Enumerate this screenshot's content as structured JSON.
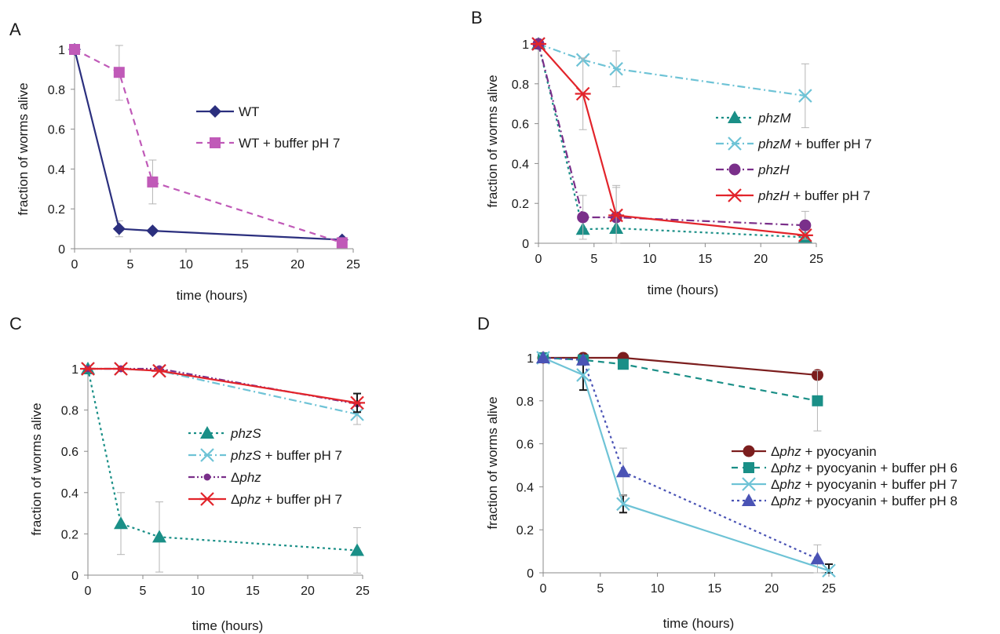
{
  "chart_data": [
    {
      "panel": "A",
      "type": "line",
      "xlabel": "time (hours)",
      "ylabel": "fraction of worms alive",
      "xlim": [
        0,
        25
      ],
      "ylim": [
        0,
        1
      ],
      "xticks": [
        "0",
        "5",
        "10",
        "15",
        "20",
        "25"
      ],
      "yticks": [
        "0",
        "0.2",
        "0.4",
        "0.6",
        "0.8",
        "1"
      ],
      "legend_position": "center-right",
      "series": [
        {
          "name": [
            "WT"
          ],
          "color": "#2b2f7e",
          "dash": "solid",
          "marker": "diamond",
          "x": [
            0,
            4,
            7,
            24
          ],
          "y": [
            1.0,
            0.1,
            0.09,
            0.045
          ],
          "err": [
            0,
            0.04,
            0,
            0
          ]
        },
        {
          "name": [
            "WT + buffer pH 7"
          ],
          "color": "#c05ab8",
          "dash": "dashed",
          "marker": "square",
          "x": [
            0,
            4,
            7,
            24
          ],
          "y": [
            1.0,
            0.885,
            0.335,
            0.03
          ],
          "err": [
            0,
            0.14,
            0.11,
            0
          ]
        }
      ]
    },
    {
      "panel": "B",
      "type": "line",
      "xlabel": "time (hours)",
      "ylabel": "fraction of worms alive",
      "xlim": [
        0,
        25
      ],
      "ylim": [
        0,
        1
      ],
      "xticks": [
        "0",
        "5",
        "10",
        "15",
        "20",
        "25"
      ],
      "yticks": [
        "0",
        "0.2",
        "0.4",
        "0.6",
        "0.8",
        "1"
      ],
      "legend_position": "center-right",
      "series": [
        {
          "name": [
            "phzM"
          ],
          "color": "#1a8f87",
          "dash": "dotted",
          "marker": "triangle",
          "x": [
            0,
            4,
            7,
            24
          ],
          "y": [
            1.0,
            0.07,
            0.075,
            0.03
          ],
          "err": [
            0,
            0,
            0,
            0
          ]
        },
        {
          "name": [
            "phzM",
            " + buffer pH 7"
          ],
          "color": "#6ec3d6",
          "dash": "dashdot",
          "marker": "x",
          "x": [
            0,
            4,
            7,
            24
          ],
          "y": [
            1.0,
            0.92,
            0.875,
            0.74
          ],
          "err": [
            0,
            0,
            0.09,
            0.16
          ]
        },
        {
          "name": [
            "phzH"
          ],
          "color": "#7a2f8a",
          "dash": "dashdot",
          "marker": "circle",
          "x": [
            0,
            4,
            7,
            24
          ],
          "y": [
            1.0,
            0.13,
            0.13,
            0.09
          ],
          "err": [
            0,
            0.11,
            0.15,
            0.07
          ]
        },
        {
          "name": [
            "phzH",
            " + buffer pH 7"
          ],
          "color": "#e2242b",
          "dash": "solid",
          "marker": "star",
          "x": [
            0,
            4,
            7,
            24
          ],
          "y": [
            1.0,
            0.75,
            0.14,
            0.04
          ],
          "err": [
            0,
            0.18,
            0.15,
            0
          ]
        }
      ]
    },
    {
      "panel": "C",
      "type": "line",
      "xlabel": "time (hours)",
      "ylabel": "fraction of worms alive",
      "xlim": [
        0,
        25
      ],
      "ylim": [
        0,
        1
      ],
      "xticks": [
        "0",
        "5",
        "10",
        "15",
        "20",
        "25"
      ],
      "yticks": [
        "0",
        "0.2",
        "0.4",
        "0.6",
        "0.8",
        "1"
      ],
      "legend_position": "center",
      "series": [
        {
          "name": [
            "phzS"
          ],
          "color": "#1a8f87",
          "dash": "dotted",
          "marker": "triangle",
          "x": [
            0,
            3,
            6.5,
            24.5
          ],
          "y": [
            1.0,
            0.25,
            0.185,
            0.12
          ],
          "err": [
            0,
            0.15,
            0.17,
            0.11
          ]
        },
        {
          "name": [
            "phzS",
            " + buffer pH 7"
          ],
          "color": "#6ec3d6",
          "dash": "dashdot",
          "marker": "x",
          "x": [
            0,
            3,
            6.5,
            24.5
          ],
          "y": [
            1.0,
            1.0,
            0.99,
            0.78
          ],
          "err": [
            0,
            0,
            0,
            0.05
          ]
        },
        {
          "name": [
            "Δ",
            "phz"
          ],
          "color": "#7a2f8a",
          "dash": "dashdotdot",
          "marker": "smallcircle",
          "x": [
            0,
            3,
            6.5,
            24.5
          ],
          "y": [
            1.0,
            1.0,
            1.0,
            0.83
          ],
          "err": [
            0,
            0,
            0,
            0
          ]
        },
        {
          "name": [
            "Δ",
            "phz",
            " + buffer pH 7"
          ],
          "color": "#e2242b",
          "dash": "solid",
          "marker": "star",
          "x": [
            0,
            3,
            6.5,
            24.5
          ],
          "y": [
            1.0,
            1.0,
            0.99,
            0.835
          ],
          "err": [
            0,
            0,
            0,
            0.045
          ]
        }
      ]
    },
    {
      "panel": "D",
      "type": "line",
      "xlabel": "time (hours)",
      "ylabel": "fraction of worms alive",
      "xlim": [
        0,
        25
      ],
      "ylim": [
        0,
        1
      ],
      "xticks": [
        "0",
        "5",
        "10",
        "15",
        "20",
        "25"
      ],
      "yticks": [
        "0",
        "0.2",
        "0.4",
        "0.6",
        "0.8",
        "1"
      ],
      "legend_position": "center-right",
      "series": [
        {
          "name": [
            "Δ",
            "phz",
            " + pyocyanin"
          ],
          "color": "#7c1e1e",
          "dash": "solid",
          "marker": "circle",
          "x": [
            0,
            3.5,
            7,
            24
          ],
          "y": [
            1.0,
            1.0,
            1.0,
            0.92
          ],
          "err": [
            0,
            0,
            0,
            0
          ]
        },
        {
          "name": [
            "Δ",
            "phz",
            " + pyocyanin + buffer pH 6"
          ],
          "color": "#1a8f87",
          "dash": "dashed",
          "marker": "square",
          "x": [
            0,
            3.5,
            7,
            24
          ],
          "y": [
            1.0,
            0.99,
            0.97,
            0.8
          ],
          "err": [
            0,
            0,
            0,
            0.14
          ]
        },
        {
          "name": [
            "Δ",
            "phz",
            " + pyocyanin + buffer pH 7"
          ],
          "color": "#6ec3d6",
          "dash": "solid",
          "marker": "x",
          "x": [
            0,
            3.5,
            7,
            25
          ],
          "y": [
            1.0,
            0.92,
            0.32,
            0.01
          ],
          "err": [
            0,
            0.07,
            0.04,
            0.03
          ]
        },
        {
          "name": [
            "Δ",
            "phz",
            " + pyocyanin + buffer pH 8"
          ],
          "color": "#4a53b5",
          "dash": "dotted",
          "marker": "triangle",
          "x": [
            0,
            3.5,
            7,
            24
          ],
          "y": [
            1.0,
            0.99,
            0.47,
            0.065
          ],
          "err": [
            0,
            0,
            0.11,
            0.065
          ]
        }
      ]
    }
  ]
}
